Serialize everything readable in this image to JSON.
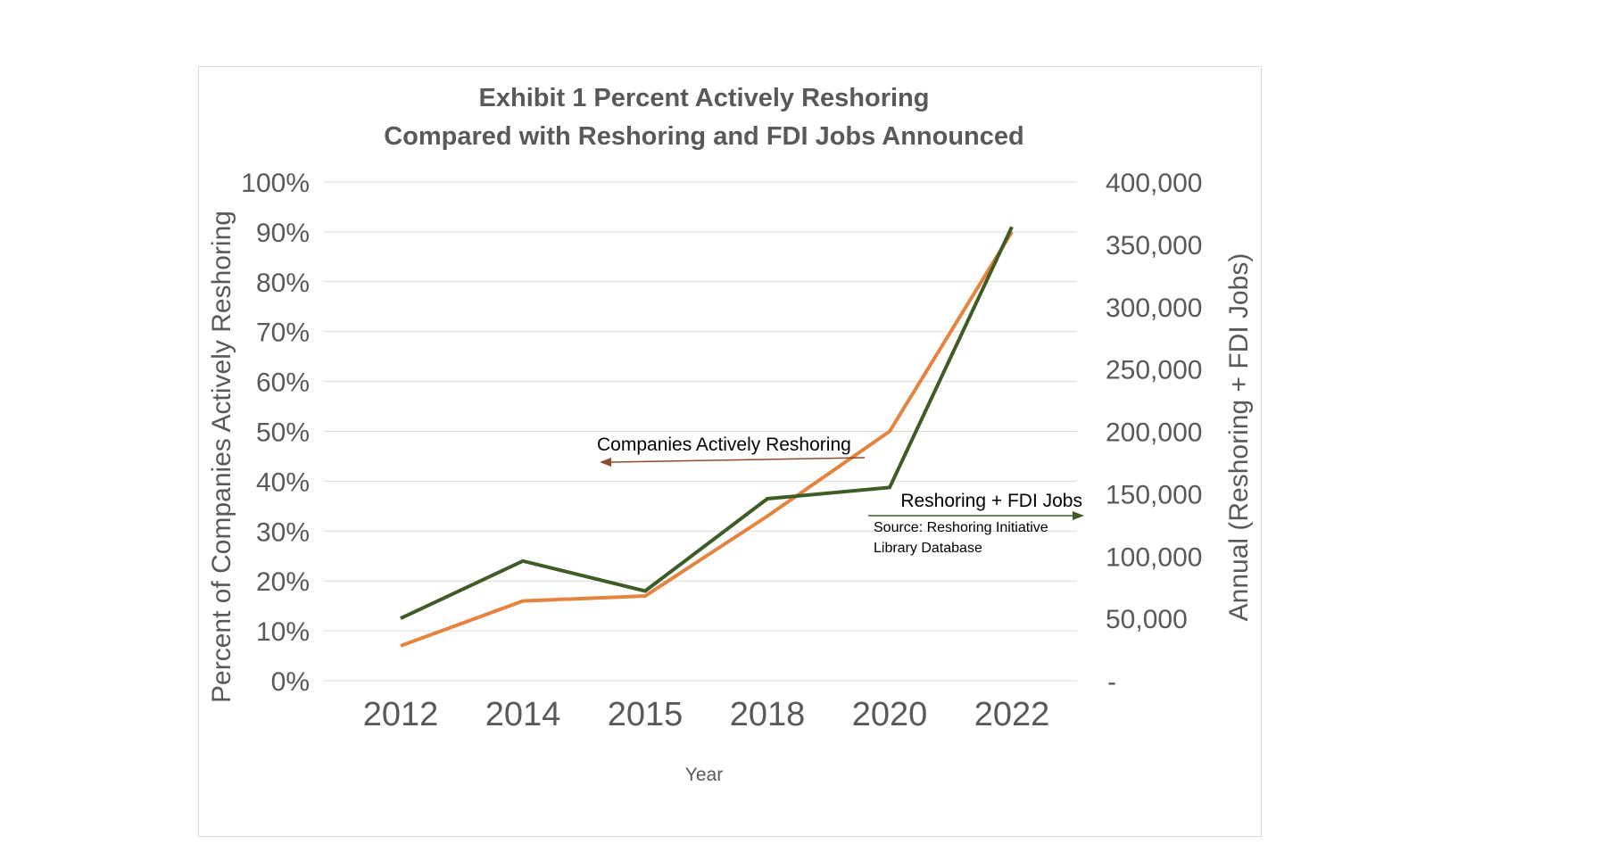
{
  "chart_data": {
    "type": "line",
    "title_line1": "Exhibit 1    Percent Actively Reshoring",
    "title_line2": "Compared with Reshoring and FDI Jobs Announced",
    "xlabel": "Year",
    "ylabel_left": "Percent of Companies Actively Reshoring",
    "ylabel_right": "Annual (Reshoring + FDI Jobs)",
    "categories": [
      "2012",
      "2014",
      "2015",
      "2018",
      "2020",
      "2022"
    ],
    "y_left": {
      "lim": [
        0,
        100
      ],
      "ticks": [
        0,
        10,
        20,
        30,
        40,
        50,
        60,
        70,
        80,
        90,
        100
      ],
      "tick_labels": [
        "0%",
        "10%",
        "20%",
        "30%",
        "40%",
        "50%",
        "60%",
        "70%",
        "80%",
        "90%",
        "100%"
      ]
    },
    "y_right": {
      "lim": [
        0,
        400000
      ],
      "ticks": [
        0,
        50000,
        100000,
        150000,
        200000,
        250000,
        300000,
        350000,
        400000
      ],
      "tick_labels": [
        "-",
        "50,000",
        "100,000",
        "150,000",
        "200,000",
        "250,000",
        "300,000",
        "350,000",
        "400,000"
      ]
    },
    "grid": true,
    "series": [
      {
        "name": "Companies Actively Reshoring",
        "axis": "left",
        "color": "#E5843E",
        "values": [
          7,
          16,
          17,
          33,
          50,
          90
        ]
      },
      {
        "name": "Reshoring + FDI Jobs",
        "axis": "right",
        "color": "#3F5B26",
        "values": [
          50000,
          96000,
          72000,
          146000,
          155000,
          364000
        ]
      }
    ],
    "annotations": {
      "companies_label": "Companies Actively Reshoring",
      "jobs_label": "Reshoring + FDI Jobs",
      "source_line1": "Source:  Reshoring Initiative",
      "source_line2": "Library Database"
    },
    "colors": {
      "grid": "#d9d9d9",
      "text": "#595959",
      "companies_arrow": "#8B4A2B",
      "jobs_arrow": "#3F5B26"
    }
  }
}
